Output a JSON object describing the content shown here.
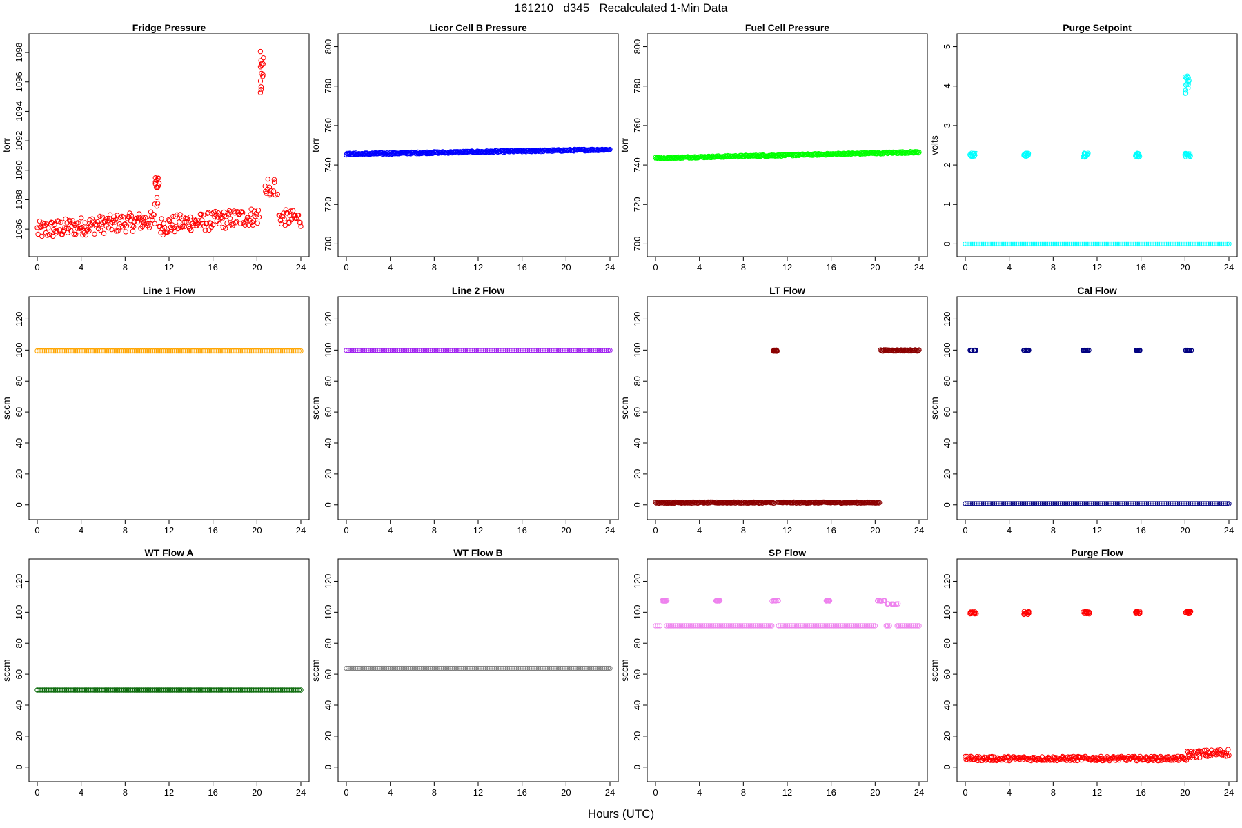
{
  "header": {
    "title": "161210   d345   Recalculated 1-Min Data"
  },
  "footer": {
    "xlabel": "Hours (UTC)"
  },
  "chart_data": [
    {
      "type": "scatter",
      "title": "Fridge Pressure",
      "ylabel": "torr",
      "xlim": [
        0,
        24
      ],
      "ylim": [
        1084.6,
        1098.8
      ],
      "xticks": [
        0,
        4,
        8,
        12,
        16,
        20,
        24
      ],
      "yticks": [
        1086,
        1088,
        1090,
        1092,
        1094,
        1096,
        1098
      ],
      "color": "#ff0000",
      "marker": "open-circle",
      "series": [
        {
          "kind": "band",
          "segments": [
            {
              "x": [
                0,
                4
              ],
              "y": [
                1085.9,
                1086.2
              ],
              "spread": 0.9
            },
            {
              "x": [
                4,
                10.7
              ],
              "y": [
                1086.2,
                1086.6
              ],
              "spread": 0.9
            },
            {
              "x": [
                11.1,
                14
              ],
              "y": [
                1086.2,
                1086.5
              ],
              "spread": 0.9
            },
            {
              "x": [
                14,
                20.2
              ],
              "y": [
                1086.4,
                1086.9
              ],
              "spread": 0.9
            },
            {
              "x": [
                22,
                24
              ],
              "y": [
                1086.8,
                1086.7
              ],
              "spread": 0.8
            }
          ]
        },
        {
          "kind": "cluster",
          "x": [
            10.7,
            11.1
          ],
          "y": [
            1087.5,
            1089.5
          ]
        },
        {
          "kind": "cluster",
          "x": [
            20.3,
            20.6
          ],
          "y": [
            1095.2,
            1098.3
          ]
        },
        {
          "kind": "cluster",
          "x": [
            20.6,
            22
          ],
          "y": [
            1088.3,
            1089.6
          ]
        }
      ]
    },
    {
      "type": "scatter",
      "title": "Licor Cell B Pressure",
      "ylabel": "torr",
      "xlim": [
        0,
        24
      ],
      "ylim": [
        697,
        803
      ],
      "xticks": [
        0,
        4,
        8,
        12,
        16,
        20,
        24
      ],
      "yticks": [
        700,
        720,
        740,
        760,
        780,
        800
      ],
      "color": "#0000ff",
      "marker": "open-circle",
      "series": [
        {
          "kind": "band",
          "segments": [
            {
              "x": [
                0,
                24
              ],
              "y": [
                745.5,
                747.8
              ],
              "spread": 0.6
            }
          ]
        }
      ]
    },
    {
      "type": "scatter",
      "title": "Fuel Cell Pressure",
      "ylabel": "torr",
      "xlim": [
        0,
        24
      ],
      "ylim": [
        697,
        803
      ],
      "xticks": [
        0,
        4,
        8,
        12,
        16,
        20,
        24
      ],
      "yticks": [
        700,
        720,
        740,
        760,
        780,
        800
      ],
      "color": "#00ff00",
      "marker": "open-circle",
      "series": [
        {
          "kind": "band",
          "segments": [
            {
              "x": [
                0,
                24
              ],
              "y": [
                743.5,
                746.5
              ],
              "spread": 0.6
            }
          ]
        }
      ]
    },
    {
      "type": "scatter",
      "title": "Purge Setpoint",
      "ylabel": "volts",
      "xlim": [
        0,
        24
      ],
      "ylim": [
        -0.15,
        5.15
      ],
      "xticks": [
        0,
        4,
        8,
        12,
        16,
        20,
        24
      ],
      "yticks": [
        0,
        1,
        2,
        3,
        4,
        5
      ],
      "color": "#00ffff",
      "marker": "open-circle",
      "series": [
        {
          "kind": "band",
          "segments": [
            {
              "x": [
                0,
                24
              ],
              "y": [
                0,
                0
              ],
              "spread": 0
            }
          ]
        },
        {
          "kind": "cluster",
          "x": [
            0.4,
            1.0
          ],
          "y": [
            2.2,
            2.3
          ]
        },
        {
          "kind": "cluster",
          "x": [
            5.3,
            5.8
          ],
          "y": [
            2.2,
            2.3
          ]
        },
        {
          "kind": "cluster",
          "x": [
            10.7,
            11.2
          ],
          "y": [
            2.2,
            2.3
          ]
        },
        {
          "kind": "cluster",
          "x": [
            15.5,
            15.9
          ],
          "y": [
            2.2,
            2.3
          ]
        },
        {
          "kind": "cluster",
          "x": [
            20.0,
            20.5
          ],
          "y": [
            2.2,
            2.3
          ]
        },
        {
          "kind": "cluster",
          "x": [
            20.0,
            20.4
          ],
          "y": [
            3.8,
            4.3
          ]
        }
      ]
    },
    {
      "type": "scatter",
      "title": "Line 1 Flow",
      "ylabel": "sccm",
      "xlim": [
        0,
        24
      ],
      "ylim": [
        -5,
        130
      ],
      "xticks": [
        0,
        4,
        8,
        12,
        16,
        20,
        24
      ],
      "yticks": [
        0,
        20,
        40,
        60,
        80,
        100,
        120
      ],
      "color": "#ffa500",
      "marker": "open-circle",
      "series": [
        {
          "kind": "band",
          "segments": [
            {
              "x": [
                0,
                24
              ],
              "y": [
                99.5,
                99.5
              ],
              "spread": 0
            }
          ]
        }
      ]
    },
    {
      "type": "scatter",
      "title": "Line 2 Flow",
      "ylabel": "sccm",
      "xlim": [
        0,
        24
      ],
      "ylim": [
        -5,
        130
      ],
      "xticks": [
        0,
        4,
        8,
        12,
        16,
        20,
        24
      ],
      "yticks": [
        0,
        20,
        40,
        60,
        80,
        100,
        120
      ],
      "color": "#a020f0",
      "marker": "open-circle",
      "series": [
        {
          "kind": "band",
          "segments": [
            {
              "x": [
                0,
                24
              ],
              "y": [
                99.8,
                99.8
              ],
              "spread": 0
            }
          ]
        }
      ]
    },
    {
      "type": "scatter",
      "title": "LT Flow",
      "ylabel": "sccm",
      "xlim": [
        0,
        24
      ],
      "ylim": [
        -5,
        130
      ],
      "xticks": [
        0,
        4,
        8,
        12,
        16,
        20,
        24
      ],
      "yticks": [
        0,
        20,
        40,
        60,
        80,
        100,
        120
      ],
      "color": "#8b0000",
      "marker": "open-circle",
      "series": [
        {
          "kind": "band",
          "segments": [
            {
              "x": [
                0,
                10.8
              ],
              "y": [
                1.5,
                1.5
              ],
              "spread": 0.6
            },
            {
              "x": [
                11.1,
                20.4
              ],
              "y": [
                1.5,
                1.5
              ],
              "spread": 0.6
            },
            {
              "x": [
                20.5,
                24
              ],
              "y": [
                99.8,
                99.8
              ],
              "spread": 0.6
            }
          ]
        },
        {
          "kind": "cluster",
          "x": [
            10.7,
            11.1
          ],
          "y": [
            99.3,
            100
          ]
        }
      ]
    },
    {
      "type": "scatter",
      "title": "Cal Flow",
      "ylabel": "sccm",
      "xlim": [
        0,
        24
      ],
      "ylim": [
        -5,
        130
      ],
      "xticks": [
        0,
        4,
        8,
        12,
        16,
        20,
        24
      ],
      "yticks": [
        0,
        20,
        40,
        60,
        80,
        100,
        120
      ],
      "color": "#000080",
      "marker": "open-circle",
      "series": [
        {
          "kind": "band",
          "segments": [
            {
              "x": [
                0,
                24
              ],
              "y": [
                0.8,
                0.8
              ],
              "spread": 0
            }
          ]
        },
        {
          "kind": "cluster",
          "x": [
            0.4,
            1.0
          ],
          "y": [
            99.7,
            99.9
          ]
        },
        {
          "kind": "cluster",
          "x": [
            5.3,
            5.8
          ],
          "y": [
            99.7,
            99.9
          ]
        },
        {
          "kind": "cluster",
          "x": [
            10.7,
            11.3
          ],
          "y": [
            99.7,
            99.9
          ]
        },
        {
          "kind": "cluster",
          "x": [
            15.5,
            15.9
          ],
          "y": [
            99.7,
            99.9
          ]
        },
        {
          "kind": "cluster",
          "x": [
            20.0,
            20.6
          ],
          "y": [
            99.7,
            99.9
          ]
        }
      ]
    },
    {
      "type": "scatter",
      "title": "WT Flow A",
      "ylabel": "sccm",
      "xlim": [
        0,
        24
      ],
      "ylim": [
        -5,
        130
      ],
      "xticks": [
        0,
        4,
        8,
        12,
        16,
        20,
        24
      ],
      "yticks": [
        0,
        20,
        40,
        60,
        80,
        100,
        120
      ],
      "color": "#006400",
      "marker": "open-circle",
      "series": [
        {
          "kind": "band",
          "segments": [
            {
              "x": [
                0,
                24
              ],
              "y": [
                49.8,
                49.8
              ],
              "spread": 0
            }
          ]
        }
      ]
    },
    {
      "type": "scatter",
      "title": "WT Flow B",
      "ylabel": "sccm",
      "xlim": [
        0,
        24
      ],
      "ylim": [
        -5,
        130
      ],
      "xticks": [
        0,
        4,
        8,
        12,
        16,
        20,
        24
      ],
      "yticks": [
        0,
        20,
        40,
        60,
        80,
        100,
        120
      ],
      "color": "#808080",
      "marker": "open-circle",
      "series": [
        {
          "kind": "band",
          "segments": [
            {
              "x": [
                0,
                24
              ],
              "y": [
                63.8,
                63.8
              ],
              "spread": 0
            }
          ]
        }
      ]
    },
    {
      "type": "scatter",
      "title": "SP Flow",
      "ylabel": "sccm",
      "xlim": [
        0,
        24
      ],
      "ylim": [
        -5,
        130
      ],
      "xticks": [
        0,
        4,
        8,
        12,
        16,
        20,
        24
      ],
      "yticks": [
        0,
        20,
        40,
        60,
        80,
        100,
        120
      ],
      "color": "#ee82ee",
      "marker": "open-circle",
      "series": [
        {
          "kind": "band",
          "segments": [
            {
              "x": [
                0,
                0.4
              ],
              "y": [
                91.3,
                91.3
              ],
              "spread": 0
            },
            {
              "x": [
                1.0,
                10.6
              ],
              "y": [
                91.3,
                91.3
              ],
              "spread": 0
            },
            {
              "x": [
                11.2,
                20.0
              ],
              "y": [
                91.3,
                91.3
              ],
              "spread": 0
            },
            {
              "x": [
                21.0,
                21.3
              ],
              "y": [
                91.3,
                91.3
              ],
              "spread": 0
            },
            {
              "x": [
                22.0,
                24
              ],
              "y": [
                91.3,
                91.3
              ],
              "spread": 0
            }
          ]
        },
        {
          "kind": "cluster",
          "x": [
            0.6,
            1.1
          ],
          "y": [
            107.2,
            107.6
          ]
        },
        {
          "kind": "cluster",
          "x": [
            5.5,
            5.9
          ],
          "y": [
            107.2,
            107.6
          ]
        },
        {
          "kind": "cluster",
          "x": [
            10.6,
            11.2
          ],
          "y": [
            107.2,
            107.6
          ]
        },
        {
          "kind": "cluster",
          "x": [
            15.5,
            15.9
          ],
          "y": [
            107.2,
            107.6
          ]
        },
        {
          "kind": "cluster",
          "x": [
            20.2,
            20.9
          ],
          "y": [
            107.2,
            107.6
          ]
        },
        {
          "kind": "cluster",
          "x": [
            21.0,
            22.3
          ],
          "y": [
            105.2,
            105.6
          ]
        }
      ]
    },
    {
      "type": "scatter",
      "title": "Purge Flow",
      "ylabel": "sccm",
      "xlim": [
        0,
        24
      ],
      "ylim": [
        -5,
        130
      ],
      "xticks": [
        0,
        4,
        8,
        12,
        16,
        20,
        24
      ],
      "yticks": [
        0,
        20,
        40,
        60,
        80,
        100,
        120
      ],
      "color": "#ff0000",
      "marker": "open-circle",
      "series": [
        {
          "kind": "band",
          "segments": [
            {
              "x": [
                0,
                20.2
              ],
              "y": [
                5.5,
                5.5
              ],
              "spread": 2.0
            },
            {
              "x": [
                20.2,
                24
              ],
              "y": [
                8.0,
                9.5
              ],
              "spread": 3.5
            }
          ]
        },
        {
          "kind": "cluster",
          "x": [
            0.4,
            1.0
          ],
          "y": [
            99.0,
            100.5
          ]
        },
        {
          "kind": "cluster",
          "x": [
            5.3,
            5.8
          ],
          "y": [
            98.5,
            100.5
          ]
        },
        {
          "kind": "cluster",
          "x": [
            10.7,
            11.3
          ],
          "y": [
            99.0,
            100.5
          ]
        },
        {
          "kind": "cluster",
          "x": [
            15.5,
            15.9
          ],
          "y": [
            99.0,
            100.5
          ]
        },
        {
          "kind": "cluster",
          "x": [
            20.0,
            20.6
          ],
          "y": [
            99.0,
            100.5
          ]
        }
      ]
    }
  ]
}
